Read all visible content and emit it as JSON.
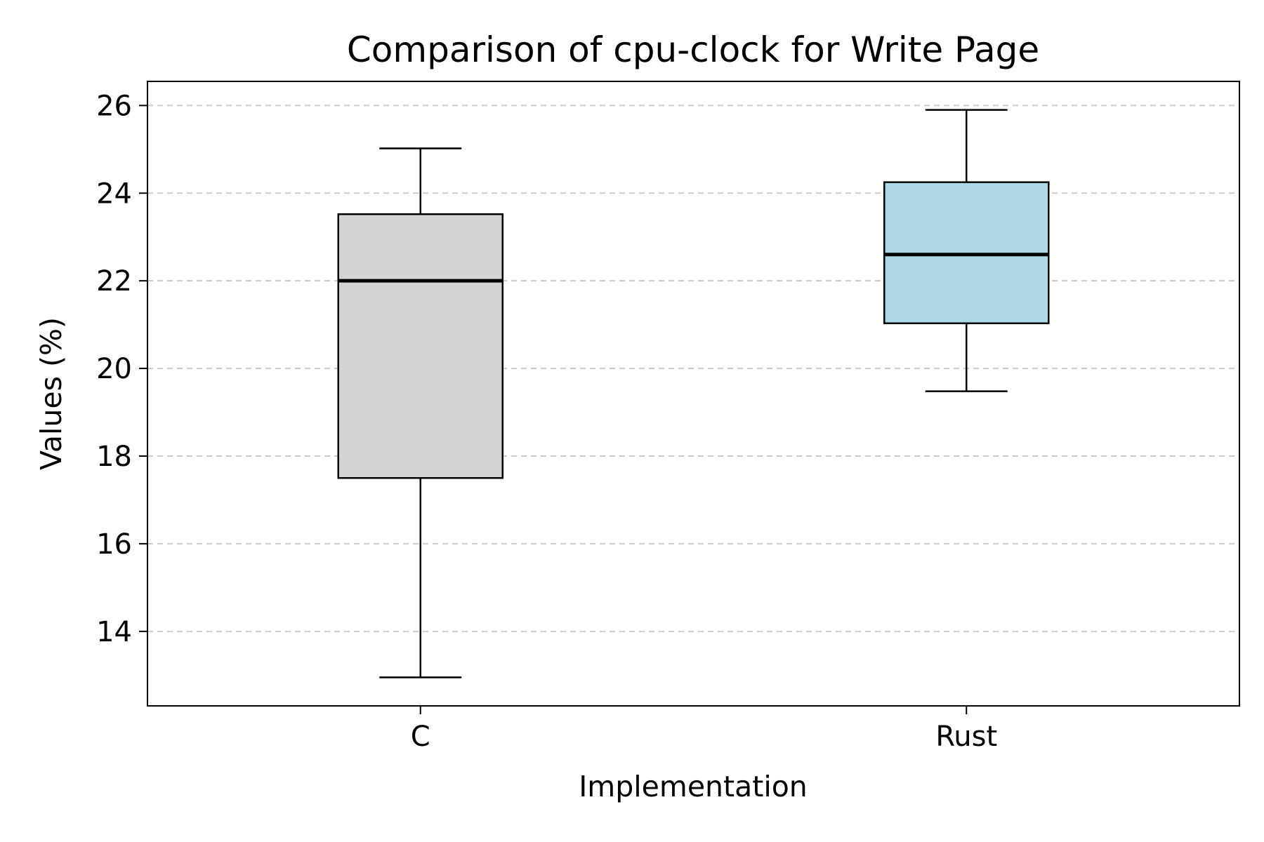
{
  "chart_data": {
    "type": "box",
    "title": "Comparison of cpu-clock for Write Page",
    "xlabel": "Implementation",
    "ylabel": "Values (%)",
    "categories": [
      "C",
      "Rust"
    ],
    "boxes": [
      {
        "name": "C",
        "whisker_low": 12.95,
        "q1": 17.5,
        "median": 22.0,
        "q3": 23.52,
        "whisker_high": 25.02,
        "color": "#d3d3d3"
      },
      {
        "name": "Rust",
        "whisker_low": 19.48,
        "q1": 21.03,
        "median": 22.6,
        "q3": 24.25,
        "whisker_high": 25.9,
        "color": "#add8e6"
      }
    ],
    "ylim": [
      12.3,
      26.55
    ],
    "yticks": [
      14,
      16,
      18,
      20,
      22,
      24,
      26
    ],
    "grid": {
      "y": true,
      "x": false,
      "style": "dashed",
      "color": "#cccccc"
    }
  }
}
